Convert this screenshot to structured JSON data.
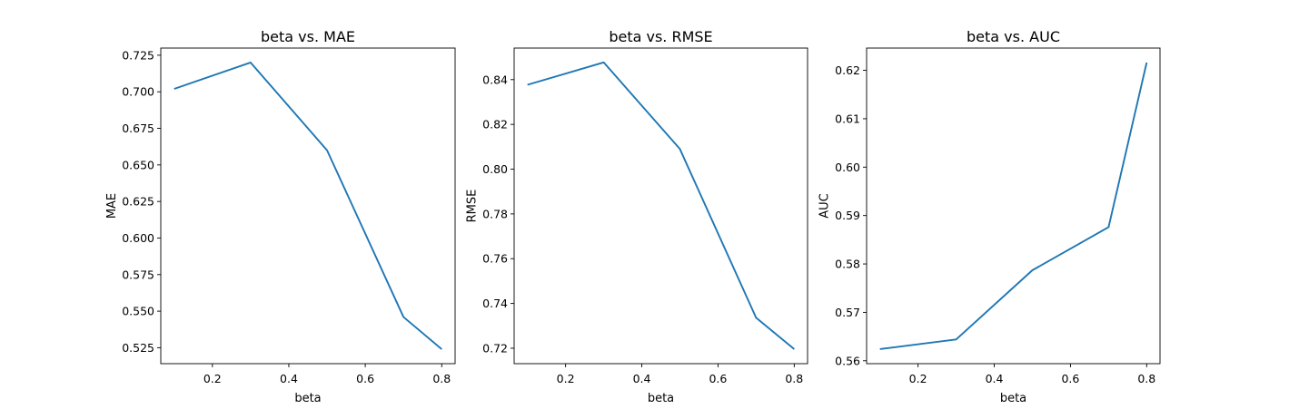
{
  "chart_data": [
    {
      "type": "line",
      "title": "beta vs. MAE",
      "xlabel": "beta",
      "ylabel": "MAE",
      "x": [
        0.1,
        0.3,
        0.5,
        0.7,
        0.8
      ],
      "series": [
        {
          "values": [
            0.702,
            0.72,
            0.66,
            0.546,
            0.524
          ]
        }
      ],
      "xticks": [
        "0.2",
        "0.4",
        "0.6",
        "0.8"
      ],
      "yticks": [
        "0.525",
        "0.550",
        "0.575",
        "0.600",
        "0.625",
        "0.650",
        "0.675",
        "0.700",
        "0.725"
      ],
      "xlim": [
        0.065,
        0.835
      ],
      "ylim": [
        0.5141,
        0.7299
      ],
      "grid": false,
      "color": "#1f77b4"
    },
    {
      "type": "line",
      "title": "beta vs. RMSE",
      "xlabel": "beta",
      "ylabel": "RMSE",
      "x": [
        0.1,
        0.3,
        0.5,
        0.7,
        0.8
      ],
      "series": [
        {
          "values": [
            0.8377,
            0.8477,
            0.809,
            0.7336,
            0.7196
          ]
        }
      ],
      "xticks": [
        "0.2",
        "0.4",
        "0.6",
        "0.8"
      ],
      "yticks": [
        "0.72",
        "0.74",
        "0.76",
        "0.78",
        "0.80",
        "0.82",
        "0.84"
      ],
      "xlim": [
        0.065,
        0.835
      ],
      "ylim": [
        0.7131,
        0.8541
      ],
      "grid": false,
      "color": "#1f77b4"
    },
    {
      "type": "line",
      "title": "beta vs. AUC",
      "xlabel": "beta",
      "ylabel": "AUC",
      "x": [
        0.1,
        0.3,
        0.5,
        0.7,
        0.8
      ],
      "series": [
        {
          "values": [
            0.5624,
            0.5644,
            0.5787,
            0.5876,
            0.6216
          ]
        }
      ],
      "xticks": [
        "0.2",
        "0.4",
        "0.6",
        "0.8"
      ],
      "yticks": [
        "0.56",
        "0.57",
        "0.58",
        "0.59",
        "0.60",
        "0.61",
        "0.62"
      ],
      "xlim": [
        0.065,
        0.835
      ],
      "ylim": [
        0.5594,
        0.6246
      ],
      "grid": false,
      "color": "#1f77b4"
    }
  ]
}
